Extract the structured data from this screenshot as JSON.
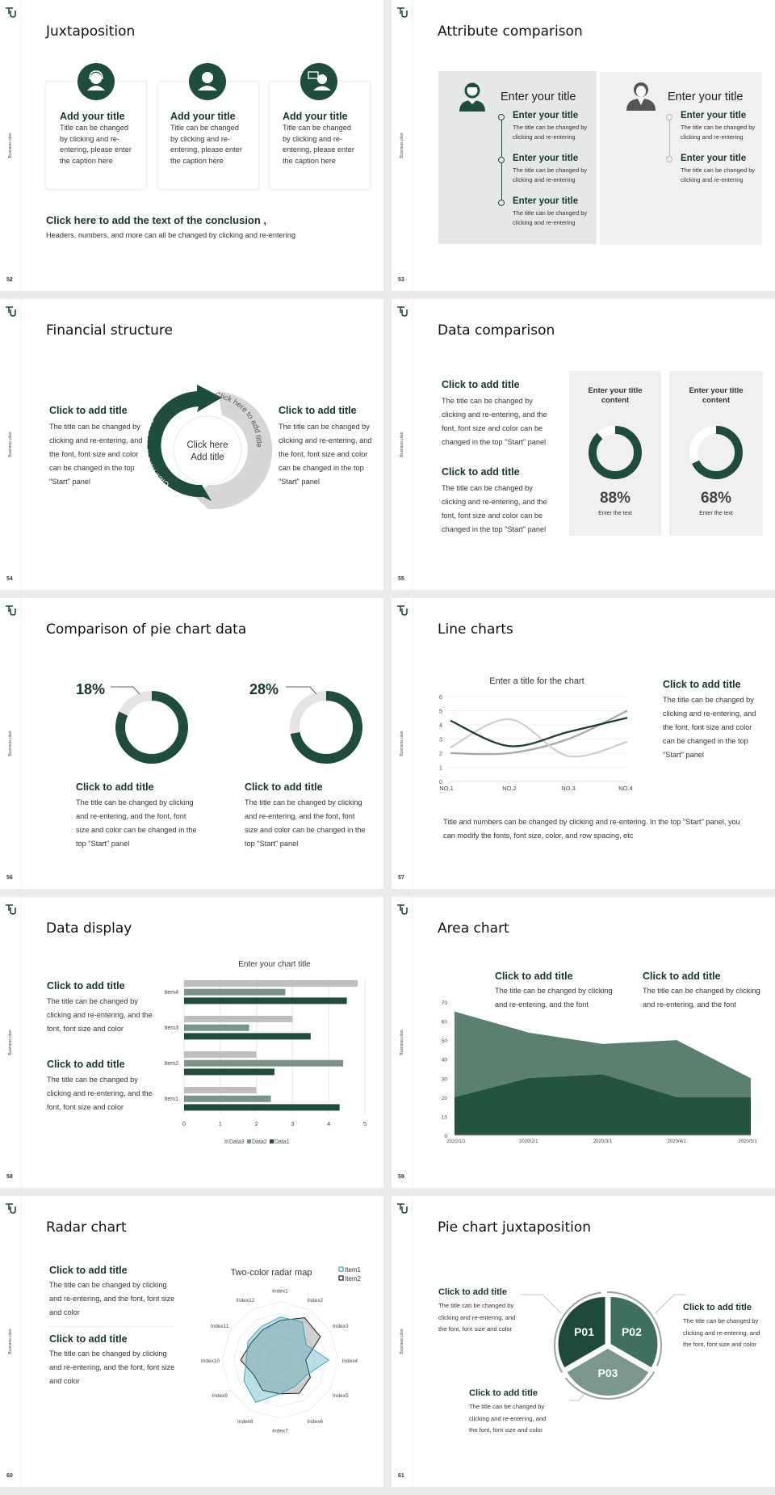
{
  "side_label": "Business plan",
  "colors": {
    "green": "#1e4d3b",
    "mid_green": "#5c8070",
    "light_gray": "#e4e4e4",
    "bar_gray": "#bfbfbf",
    "radar_teal": "#3aa6b9"
  },
  "s52": {
    "page": "52",
    "title": "Juxtaposition",
    "cards": [
      {
        "icon": "headset-person-icon",
        "title": "Add your title",
        "body": "Title can be changed by clicking and re-entering, please enter the caption here"
      },
      {
        "icon": "person-icon",
        "title": "Add your title",
        "body": "Title can be changed by clicking and re-entering, please enter the caption here"
      },
      {
        "icon": "speaking-person-icon",
        "title": "Add your title",
        "body": "Title can be changed by clicking and re-entering, please enter the caption here"
      }
    ],
    "conclusion_title": "Click here to add the text of the conclusion ,",
    "conclusion_body": "Headers, numbers, and more can all be changed by clicking and re-entering"
  },
  "s53": {
    "page": "53",
    "title": "Attribute comparison",
    "left": {
      "header": "Enter your title",
      "items": [
        {
          "title": "Enter your title",
          "body": "The title can be changed by clicking and re-entering"
        },
        {
          "title": "Enter your title",
          "body": "The title can be changed by clicking and re-entering"
        },
        {
          "title": "Enter your title",
          "body": "The title can be changed by clicking and re-entering"
        }
      ]
    },
    "right": {
      "header": "Enter your title",
      "items": [
        {
          "title": "Enter your title",
          "body": "The title can be changed by clicking and re-entering"
        },
        {
          "title": "Enter your title",
          "body": "The title can be changed by clicking and re-entering"
        }
      ]
    }
  },
  "s54": {
    "page": "54",
    "title": "Financial structure",
    "left": {
      "title": "Click to add title",
      "body": "The title can be changed by clicking and re-entering, and the font, font size and color can be changed in the top \"Start\" panel"
    },
    "right": {
      "title": "Click to add title",
      "body": "The title can be changed by clicking and re-entering, and the font, font size and color can be changed in the top \"Start\" panel"
    },
    "center_line1": "Click here",
    "center_line2": "Add title",
    "arc_left": "Click here to add title",
    "arc_right": "Click here to add title"
  },
  "s55": {
    "page": "55",
    "title": "Data comparison",
    "blocks": [
      {
        "title": "Click to add title",
        "body": "The title can be changed by clicking and re-entering, and the font, font size and color can be changed in the top \"Start\" panel"
      },
      {
        "title": "Click to add title",
        "body": "The title can be changed by clicking and re-entering, and the font, font size and color can be changed in the top \"Start\" panel"
      }
    ],
    "cards": [
      {
        "title": "Enter your title content",
        "value": 88,
        "label": "88%",
        "caption": "Enter the text"
      },
      {
        "title": "Enter your title content",
        "value": 68,
        "label": "68%",
        "caption": "Enter the text"
      }
    ]
  },
  "s56": {
    "page": "56",
    "title": "Comparison of pie chart data",
    "items": [
      {
        "value": 18,
        "label": "18%",
        "title": "Click to add title",
        "body": "The title can be changed by clicking and re-entering, and the font, font size and color can be changed in the top \"Start\" panel"
      },
      {
        "value": 28,
        "label": "28%",
        "title": "Click to add title",
        "body": "The title can be changed by clicking and re-entering, and the font, font size and color can be changed in the top \"Start\" panel"
      }
    ]
  },
  "s57": {
    "page": "57",
    "title": "Line charts",
    "side": {
      "title": "Click to add title",
      "body": "The title can be changed by clicking and re-entering, and the font, font size and color can be changed in the top \"Start\" panel"
    },
    "footer": "Title and numbers can be changed by clicking and re-entering. In the top \"Start\" panel, you can modify the fonts, font size, color, and row spacing, etc"
  },
  "s58": {
    "page": "58",
    "title": "Data display",
    "blocks": [
      {
        "title": "Click to add title",
        "body": "The title can be changed by clicking and re-entering, and the font, font size and color"
      },
      {
        "title": "Click to add title",
        "body": "The title can be changed by clicking and re-entering, and the font, font size and color"
      }
    ]
  },
  "s59": {
    "page": "59",
    "title": "Area chart",
    "blocks": [
      {
        "title": "Click to add title",
        "body": "The title can be changed by clicking and re-entering, and the font"
      },
      {
        "title": "Click to add title",
        "body": "The title can be changed by clicking and re-entering, and the font"
      }
    ]
  },
  "s60": {
    "page": "60",
    "title": "Radar chart",
    "blocks": [
      {
        "title": "Click to add title",
        "body": "The title can be changed by clicking and re-entering, and the font, font size and color"
      },
      {
        "title": "Click to add title",
        "body": "The title can be changed by clicking and re-entering, and the font, font size and color"
      }
    ]
  },
  "s61": {
    "page": "61",
    "title": "Pie chart juxtaposition",
    "segments": [
      "P01",
      "P02",
      "P03"
    ],
    "blocks": [
      {
        "title": "Click to add title",
        "body": "The title can be changed by clicking and re-entering, and the font, font size and color"
      },
      {
        "title": "Click to add title",
        "body": "The title can be changed by clicking and re-entering, and the font, font size and color"
      },
      {
        "title": "Click to add title",
        "body": "The title can be changed by clicking and re-entering, and the font, font size and color"
      }
    ]
  },
  "chart_data": [
    {
      "type": "line",
      "title": "Enter a title for the chart",
      "categories": [
        "NO.1",
        "NO.2",
        "NO.3",
        "NO.4"
      ],
      "ylim": [
        0,
        6
      ],
      "yticks": [
        0,
        1,
        2,
        3,
        4,
        5,
        6
      ],
      "grid": true,
      "smooth": true,
      "series": [
        {
          "color": "#1b3f30",
          "values": [
            4.3,
            2.5,
            3.5,
            4.5
          ]
        },
        {
          "color": "#cfcfcf",
          "values": [
            2.4,
            4.4,
            1.8,
            2.8
          ]
        },
        {
          "color": "#a9a9a9",
          "values": [
            2.0,
            2.0,
            3.0,
            5.0
          ]
        }
      ]
    },
    {
      "type": "bar",
      "orientation": "horizontal",
      "title": "Enter your chart title",
      "categories": [
        "Item1",
        "Item2",
        "Item3",
        "Item4"
      ],
      "xlim": [
        0,
        5
      ],
      "xticks": [
        0,
        1,
        2,
        3,
        4,
        5
      ],
      "grid": true,
      "legend": "bottom",
      "series": [
        {
          "name": "Data3",
          "color": "#bfbfbf",
          "values": [
            2,
            2,
            3,
            4.8
          ]
        },
        {
          "name": "Data2",
          "color": "#7a9588",
          "values": [
            2.4,
            4.4,
            1.8,
            2.8
          ]
        },
        {
          "name": "Data1",
          "color": "#1e4d3b",
          "values": [
            4.3,
            2.5,
            3.5,
            4.5
          ]
        }
      ]
    },
    {
      "type": "area",
      "categories": [
        "2020/1/1",
        "2020/2/1",
        "2020/3/1",
        "2020/4/1",
        "2020/5/1"
      ],
      "ylim": [
        0,
        70
      ],
      "yticks": [
        0,
        10,
        20,
        30,
        40,
        50,
        60,
        70
      ],
      "grid": false,
      "series": [
        {
          "color": "#5c8070",
          "values": [
            65,
            54,
            48,
            50,
            30
          ]
        },
        {
          "color": "#245440",
          "values": [
            20,
            30,
            32,
            20,
            20
          ]
        }
      ]
    },
    {
      "type": "radar",
      "title": "Two-color radar map",
      "legend": "top-right",
      "rmax": 5,
      "rings": 5,
      "axes": [
        "Index1",
        "Index2",
        "Index3",
        "Index4",
        "Index5",
        "Index6",
        "Index7",
        "Index8",
        "Index9",
        "Index10",
        "Index11",
        "Index12"
      ],
      "series": [
        {
          "name": "Item1",
          "color": "#3aa6b9",
          "values": [
            3.7,
            3.8,
            2.6,
            4.2,
            2.6,
            2.6,
            2.9,
            4.2,
            3.6,
            2.9,
            3.2,
            3.3
          ]
        },
        {
          "name": "Item2",
          "color": "#1a1a1a",
          "values": [
            3.4,
            4.2,
            4.0,
            2.2,
            3.0,
            3.3,
            2.9,
            3.0,
            2.6,
            3.4,
            2.9,
            3.0
          ]
        }
      ]
    }
  ]
}
